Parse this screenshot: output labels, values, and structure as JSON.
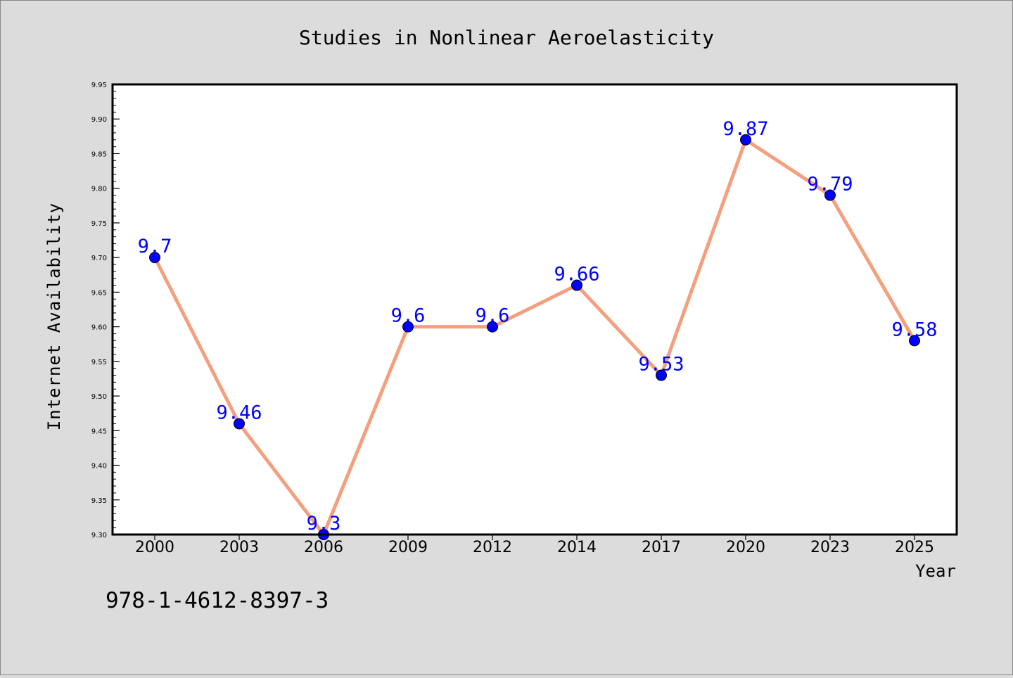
{
  "chart_data": {
    "type": "line",
    "title": "Studies in Nonlinear Aeroelasticity",
    "xlabel": "Year",
    "ylabel": "Internet Availability",
    "categories": [
      "2000",
      "2003",
      "2006",
      "2009",
      "2012",
      "2014",
      "2017",
      "2020",
      "2023",
      "2025"
    ],
    "series": [
      {
        "values": [
          9.7,
          9.46,
          9.3,
          9.6,
          9.6,
          9.66,
          9.53,
          9.87,
          9.79,
          9.58
        ],
        "data_labels": [
          "9.7",
          "9.46",
          "9.3",
          "9.6",
          "9.6",
          "9.66",
          "9.53",
          "9.87",
          "9.79",
          "9.58"
        ]
      }
    ],
    "ylim": [
      9.3,
      9.95
    ],
    "y_ticks": [
      "9.30",
      "9.35",
      "9.40",
      "9.45",
      "9.50",
      "9.55",
      "9.60",
      "9.65",
      "9.70",
      "9.75",
      "9.80",
      "9.85",
      "9.90",
      "9.95"
    ],
    "grid": false,
    "colors": {
      "line": "#f4a07e",
      "marker": "#0000ff",
      "data_label": "#0000ff",
      "background": "#dcdcdc",
      "plot_area": "#ffffff"
    }
  },
  "footer": {
    "isbn": "978-1-4612-8397-3"
  }
}
